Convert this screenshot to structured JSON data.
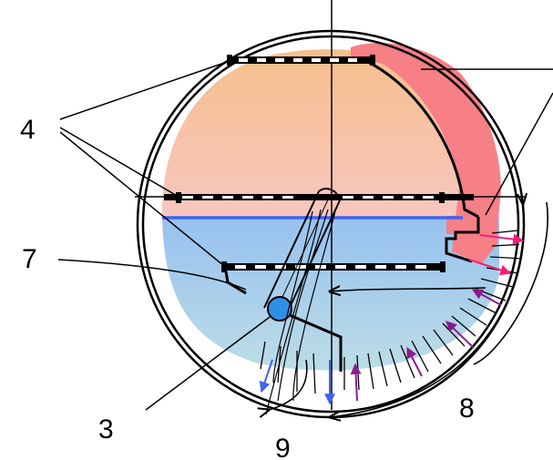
{
  "labels": {
    "label_4": "4",
    "label_7": "7",
    "label_3": "3",
    "label_8": "8",
    "label_9": "9"
  },
  "colors": {
    "outline": "#000000",
    "upper_fill_top": "#f6c08c",
    "upper_fill_bottom": "#f7c6c0",
    "hot_band": "#f77f86",
    "lower_fill_top": "#97c1ef",
    "lower_fill_bottom": "#b9dde6",
    "water_line": "#3f63f0",
    "ball": "#2f8fe8",
    "out_arrows": "#3f63f0",
    "hot_arrows": "#f51e78",
    "in_arrows": "#8a1c8c"
  }
}
